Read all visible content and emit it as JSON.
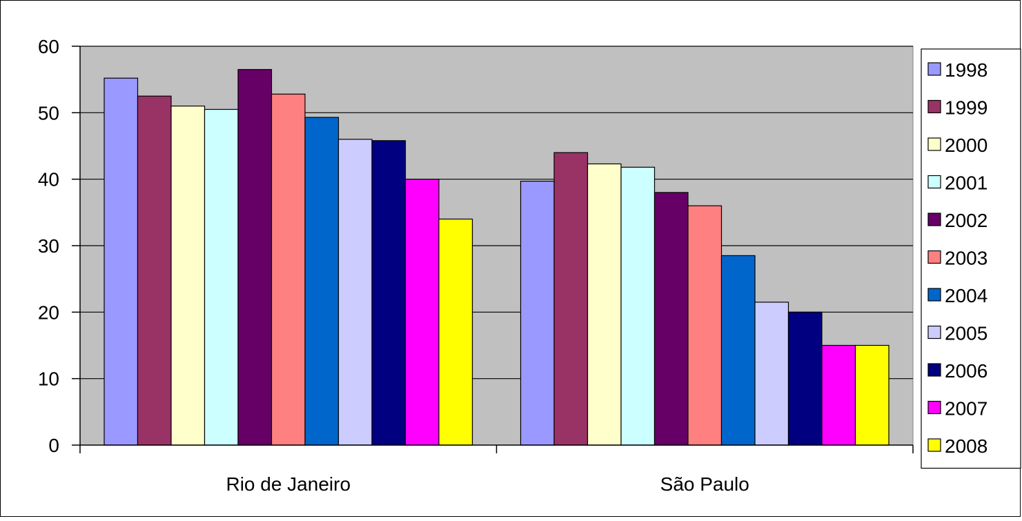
{
  "chart_data": {
    "type": "bar",
    "title": "",
    "xlabel": "",
    "ylabel": "",
    "ylim": [
      0,
      60
    ],
    "yticks": [
      0,
      10,
      20,
      30,
      40,
      50,
      60
    ],
    "grid": true,
    "legend_position": "right",
    "plot_background": "#C0C0C0",
    "categories": [
      "Rio de Janeiro",
      "São Paulo"
    ],
    "series": [
      {
        "name": "1998",
        "color": "#9999FF",
        "values": [
          55.2,
          39.7
        ]
      },
      {
        "name": "1999",
        "color": "#993366",
        "values": [
          52.5,
          44.0
        ]
      },
      {
        "name": "2000",
        "color": "#FFFFCC",
        "values": [
          51.0,
          42.3
        ]
      },
      {
        "name": "2001",
        "color": "#CCFFFF",
        "values": [
          50.5,
          41.8
        ]
      },
      {
        "name": "2002",
        "color": "#660066",
        "values": [
          56.5,
          38.0
        ]
      },
      {
        "name": "2003",
        "color": "#FF8080",
        "values": [
          52.8,
          36.0
        ]
      },
      {
        "name": "2004",
        "color": "#0066CC",
        "values": [
          49.3,
          28.5
        ]
      },
      {
        "name": "2005",
        "color": "#CCCCFF",
        "values": [
          46.0,
          21.5
        ]
      },
      {
        "name": "2006",
        "color": "#000080",
        "values": [
          45.8,
          20.0
        ]
      },
      {
        "name": "2007",
        "color": "#FF00FF",
        "values": [
          40.0,
          15.0
        ]
      },
      {
        "name": "2008",
        "color": "#FFFF00",
        "values": [
          34.0,
          15.0
        ]
      }
    ]
  }
}
